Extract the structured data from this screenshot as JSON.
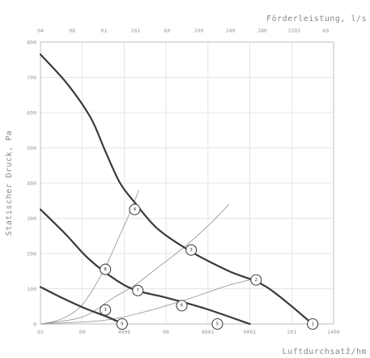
{
  "chart_data": {
    "type": "line",
    "ylabel": "Statischer Druck, Pa",
    "x2label": "Förderleistung, l/s",
    "xlabel": "Luftdurchsatž/hm",
    "ylim": [
      0,
      800
    ],
    "xlim": [
      0,
      1400
    ],
    "y_ticks": [
      "0",
      "100",
      "200",
      "300",
      "400",
      "500",
      "600",
      "700",
      "800"
    ],
    "x_ticks": [
      {
        "value": 0,
        "label": "02"
      },
      {
        "value": 200,
        "label": "00"
      },
      {
        "value": 400,
        "label": "4006"
      },
      {
        "value": 600,
        "label": "00"
      },
      {
        "value": 800,
        "label": "8001"
      },
      {
        "value": 1000,
        "label": "0001"
      },
      {
        "value": 1200,
        "label": "201"
      },
      {
        "value": 1400,
        "label": "1400"
      }
    ],
    "x2_ticks": [
      {
        "value": 0,
        "label": "04"
      },
      {
        "value": 200,
        "label": "08"
      },
      {
        "value": 400,
        "label": "01"
      },
      {
        "value": 600,
        "label": "201"
      },
      {
        "value": 800,
        "label": "60"
      },
      {
        "value": 1000,
        "label": "200"
      },
      {
        "value": 1200,
        "label": "240"
      },
      {
        "value": 1400,
        "label": "280"
      },
      {
        "value": 1600,
        "label": "3203"
      },
      {
        "value": 1800,
        "label": "60"
      }
    ],
    "fan_curves": [
      {
        "points": [
          [
            0,
            765
          ],
          [
            130,
            680
          ],
          [
            240,
            585
          ],
          [
            310,
            490
          ],
          [
            380,
            400
          ],
          [
            450,
            345
          ],
          [
            560,
            270
          ],
          [
            720,
            205
          ],
          [
            900,
            150
          ],
          [
            1080,
            105
          ],
          [
            1300,
            0
          ]
        ]
      },
      {
        "points": [
          [
            0,
            325
          ],
          [
            120,
            255
          ],
          [
            230,
            185
          ],
          [
            360,
            125
          ],
          [
            460,
            95
          ],
          [
            600,
            75
          ],
          [
            780,
            45
          ],
          [
            1000,
            0
          ]
        ]
      },
      {
        "points": [
          [
            0,
            105
          ],
          [
            100,
            75
          ],
          [
            210,
            45
          ],
          [
            320,
            20
          ],
          [
            395,
            0
          ]
        ]
      }
    ],
    "system_curves": [
      {
        "points": [
          [
            0,
            0
          ],
          [
            100,
            14
          ],
          [
            200,
            55
          ],
          [
            300,
            150
          ],
          [
            370,
            240
          ],
          [
            430,
            320
          ],
          [
            470,
            380
          ]
        ]
      },
      {
        "points": [
          [
            0,
            0
          ],
          [
            200,
            20
          ],
          [
            350,
            75
          ],
          [
            450,
            110
          ],
          [
            560,
            160
          ],
          [
            700,
            225
          ],
          [
            820,
            290
          ],
          [
            900,
            340
          ]
        ]
      },
      {
        "points": [
          [
            0,
            0
          ],
          [
            300,
            10
          ],
          [
            500,
            35
          ],
          [
            700,
            70
          ],
          [
            900,
            110
          ],
          [
            1040,
            130
          ]
        ]
      }
    ],
    "operating_points": [
      {
        "label": "1",
        "x": 1300,
        "y": 0
      },
      {
        "label": "2",
        "x": 1030,
        "y": 125
      },
      {
        "label": "3",
        "x": 720,
        "y": 210
      },
      {
        "label": "4",
        "x": 450,
        "y": 325
      },
      {
        "label": "5",
        "x": 845,
        "y": 0
      },
      {
        "label": "6",
        "x": 675,
        "y": 52
      },
      {
        "label": "7",
        "x": 465,
        "y": 95
      },
      {
        "label": "8",
        "x": 310,
        "y": 155
      },
      {
        "label": "9",
        "x": 390,
        "y": 0
      },
      {
        "label": "3",
        "x": 310,
        "y": 40
      }
    ]
  }
}
